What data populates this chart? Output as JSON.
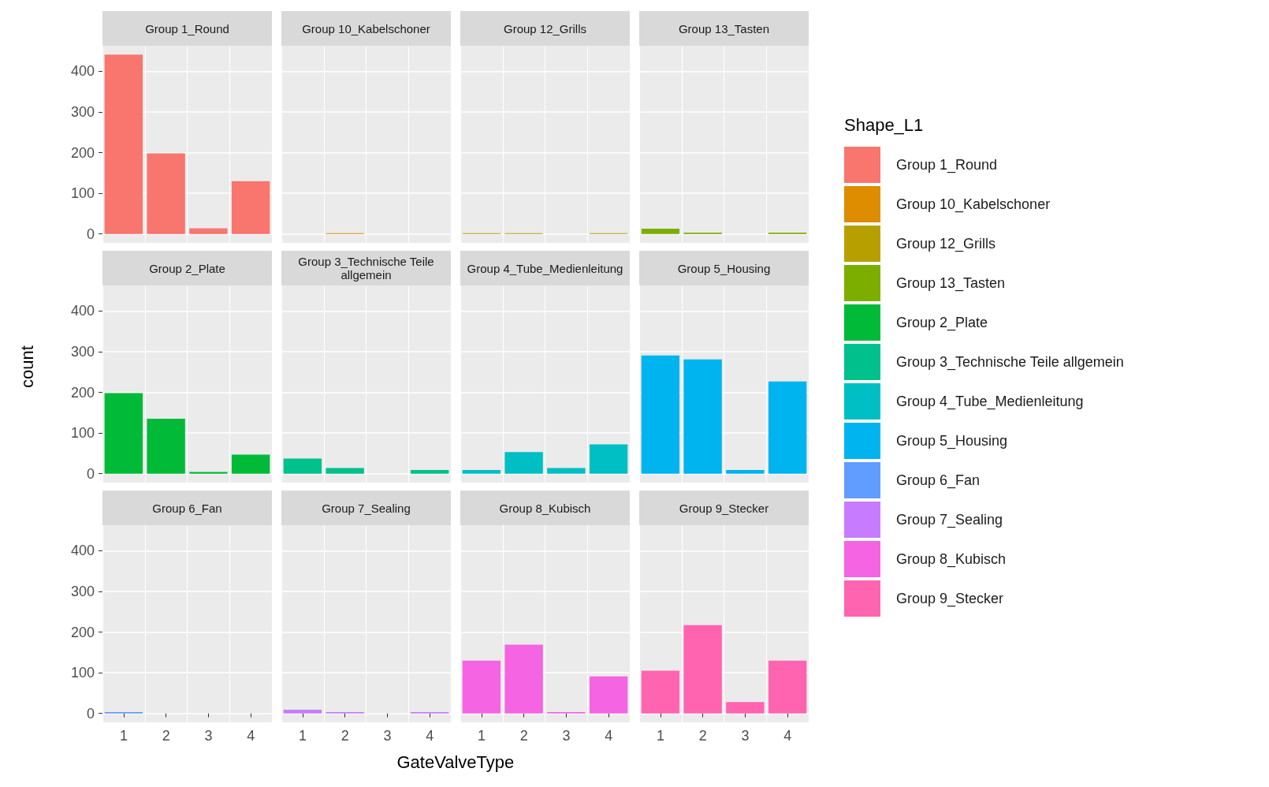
{
  "chart_data": [
    {
      "type": "bar",
      "title": "Group 1_Round",
      "legend_title": "Shape_L1",
      "categories": [
        "1",
        "2",
        "3",
        "4"
      ],
      "series": [
        {
          "name": "Group 1_Round",
          "color": "#f8766d",
          "values": [
            441,
            198,
            14,
            130
          ]
        }
      ],
      "ylim": [
        -22,
        463
      ],
      "yticks": [
        0,
        100,
        200,
        300,
        400
      ],
      "grid": true,
      "legend": "right",
      "tick_labels": "y"
    },
    {
      "type": "bar",
      "title": "Group 10_Kabelschoner",
      "categories": [
        "1",
        "2",
        "3",
        "4"
      ],
      "series": [
        {
          "name": "Group 10_Kabelschoner",
          "color": "#de8c00",
          "values": [
            null,
            2,
            null,
            null
          ]
        }
      ],
      "ylim": [
        -22,
        463
      ],
      "yticks": [
        0,
        100,
        200,
        300,
        400
      ],
      "grid": true,
      "legend": "right",
      "tick_labels": false
    },
    {
      "type": "bar",
      "title": "Group 12_Grills",
      "categories": [
        "1",
        "2",
        "3",
        "4"
      ],
      "series": [
        {
          "name": "Group 12_Grills",
          "color": "#b79f00",
          "values": [
            2,
            2,
            null,
            2
          ]
        }
      ],
      "ylim": [
        -22,
        463
      ],
      "yticks": [
        0,
        100,
        200,
        300,
        400
      ],
      "grid": true,
      "legend": "right",
      "tick_labels": false
    },
    {
      "type": "bar",
      "title": "Group 13_Tasten",
      "categories": [
        "1",
        "2",
        "3",
        "4"
      ],
      "series": [
        {
          "name": "Group 13_Tasten",
          "color": "#7cae00",
          "values": [
            13,
            3,
            null,
            3
          ]
        }
      ],
      "ylim": [
        -22,
        463
      ],
      "yticks": [
        0,
        100,
        200,
        300,
        400
      ],
      "grid": true,
      "legend": "right",
      "tick_labels": false
    },
    {
      "type": "bar",
      "title": "Group 2_Plate",
      "ylabel": "count",
      "categories": [
        "1",
        "2",
        "3",
        "4"
      ],
      "series": [
        {
          "name": "Group 2_Plate",
          "color": "#00ba38",
          "values": [
            198,
            135,
            4,
            47
          ]
        }
      ],
      "ylim": [
        -22,
        463
      ],
      "yticks": [
        0,
        100,
        200,
        300,
        400
      ],
      "grid": true,
      "legend": "right",
      "tick_labels": "y"
    },
    {
      "type": "bar",
      "title": "Group 3_Technische Teile allgemein",
      "categories": [
        "1",
        "2",
        "3",
        "4"
      ],
      "series": [
        {
          "name": "Group 3_Technische Teile allgemein",
          "color": "#00c08b",
          "values": [
            37,
            14,
            null,
            9
          ]
        }
      ],
      "ylim": [
        -22,
        463
      ],
      "yticks": [
        0,
        100,
        200,
        300,
        400
      ],
      "grid": true,
      "legend": "right",
      "tick_labels": false
    },
    {
      "type": "bar",
      "title": "Group 4_Tube_Medienleitung",
      "categories": [
        "1",
        "2",
        "3",
        "4"
      ],
      "series": [
        {
          "name": "Group 4_Tube_Medienleitung",
          "color": "#00bfc4",
          "values": [
            9,
            53,
            14,
            72
          ]
        }
      ],
      "ylim": [
        -22,
        463
      ],
      "yticks": [
        0,
        100,
        200,
        300,
        400
      ],
      "grid": true,
      "legend": "right",
      "tick_labels": false
    },
    {
      "type": "bar",
      "title": "Group 5_Housing",
      "categories": [
        "1",
        "2",
        "3",
        "4"
      ],
      "series": [
        {
          "name": "Group 5_Housing",
          "color": "#00b4f0",
          "values": [
            291,
            281,
            9,
            227
          ]
        }
      ],
      "ylim": [
        -22,
        463
      ],
      "yticks": [
        0,
        100,
        200,
        300,
        400
      ],
      "grid": true,
      "legend": "right",
      "tick_labels": false
    },
    {
      "type": "bar",
      "title": "Group 6_Fan",
      "categories": [
        "1",
        "2",
        "3",
        "4"
      ],
      "series": [
        {
          "name": "Group 6_Fan",
          "color": "#619cff",
          "values": [
            3,
            null,
            null,
            null
          ]
        }
      ],
      "ylim": [
        -22,
        463
      ],
      "yticks": [
        0,
        100,
        200,
        300,
        400
      ],
      "grid": true,
      "legend": "right"
    },
    {
      "type": "bar",
      "title": "Group 7_Sealing",
      "xlabel": "GateValveType",
      "categories": [
        "1",
        "2",
        "3",
        "4"
      ],
      "series": [
        {
          "name": "Group 7_Sealing",
          "color": "#c77cff",
          "values": [
            9,
            3,
            null,
            3
          ]
        }
      ],
      "ylim": [
        -22,
        463
      ],
      "yticks": [
        0,
        100,
        200,
        300,
        400
      ],
      "grid": true,
      "legend": "right",
      "tick_labels": "x"
    },
    {
      "type": "bar",
      "title": "Group 8_Kubisch",
      "categories": [
        "1",
        "2",
        "3",
        "4"
      ],
      "series": [
        {
          "name": "Group 8_Kubisch",
          "color": "#f564e3",
          "values": [
            130,
            169,
            3,
            91
          ]
        }
      ],
      "ylim": [
        -22,
        463
      ],
      "yticks": [
        0,
        100,
        200,
        300,
        400
      ],
      "grid": true,
      "legend": "right",
      "tick_labels": "x"
    },
    {
      "type": "bar",
      "title": "Group 9_Stecker",
      "categories": [
        "1",
        "2",
        "3",
        "4"
      ],
      "series": [
        {
          "name": "Group 9_Stecker",
          "color": "#ff64b0",
          "values": [
            105,
            217,
            28,
            130
          ]
        }
      ],
      "ylim": [
        -22,
        463
      ],
      "yticks": [
        0,
        100,
        200,
        300,
        400
      ],
      "grid": true,
      "legend": "right",
      "tick_labels": "x"
    }
  ]
}
